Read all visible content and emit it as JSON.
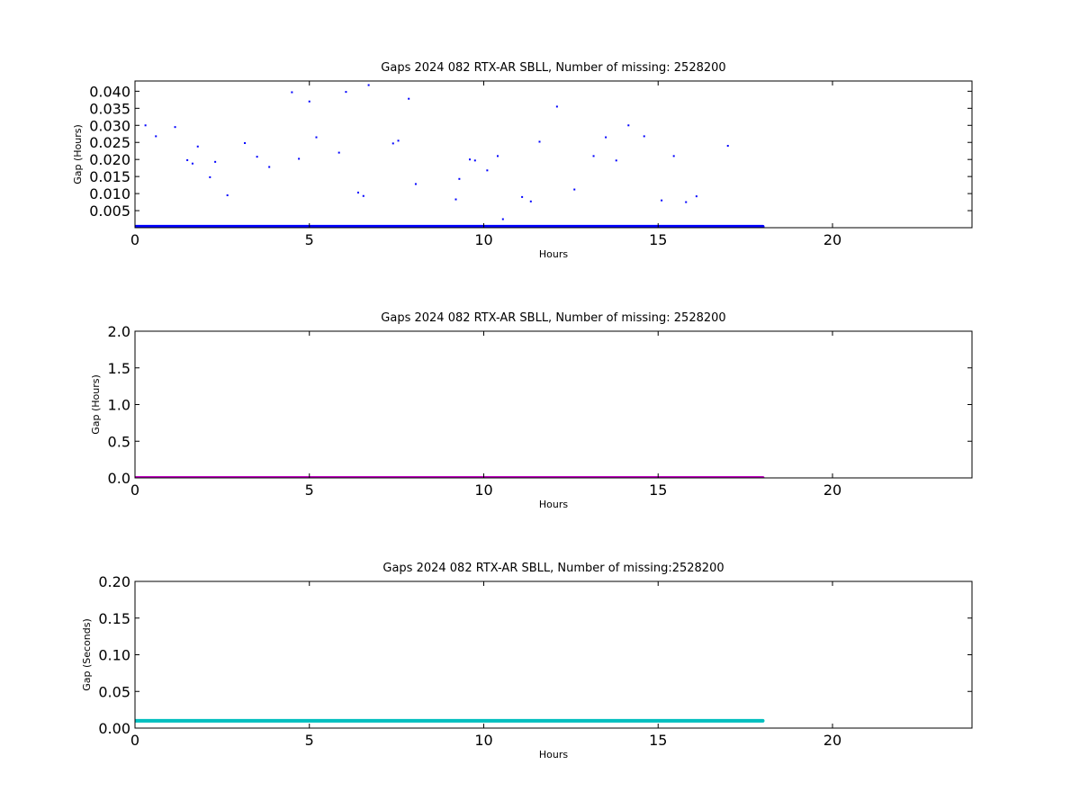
{
  "chart_data": [
    {
      "type": "scatter",
      "title": "Gaps 2024 082 RTX-AR  SBLL, Number of missing: 2528200",
      "xlabel": "Hours",
      "ylabel": "Gap (Hours)",
      "xlim": [
        0,
        24
      ],
      "ylim": [
        0,
        0.043
      ],
      "xticks": [
        0,
        5,
        10,
        15,
        20
      ],
      "yticks": [
        0.005,
        0.01,
        0.015,
        0.02,
        0.025,
        0.03,
        0.035,
        0.04
      ],
      "ytick_labels": [
        "0.005",
        "0.010",
        "0.015",
        "0.020",
        "0.025",
        "0.030",
        "0.035",
        "0.040"
      ],
      "color": "#0000ff",
      "baseline": {
        "x_start": 0,
        "x_end": 18,
        "y": 0.0003
      },
      "points": [
        {
          "x": 0.3,
          "y": 0.03
        },
        {
          "x": 0.6,
          "y": 0.0268
        },
        {
          "x": 1.15,
          "y": 0.0295
        },
        {
          "x": 1.5,
          "y": 0.0198
        },
        {
          "x": 1.65,
          "y": 0.0188
        },
        {
          "x": 1.8,
          "y": 0.0238
        },
        {
          "x": 2.15,
          "y": 0.0148
        },
        {
          "x": 2.3,
          "y": 0.0193
        },
        {
          "x": 2.65,
          "y": 0.0095
        },
        {
          "x": 3.15,
          "y": 0.0248
        },
        {
          "x": 3.5,
          "y": 0.0208
        },
        {
          "x": 3.85,
          "y": 0.0178
        },
        {
          "x": 4.5,
          "y": 0.0397
        },
        {
          "x": 4.7,
          "y": 0.0202
        },
        {
          "x": 5.0,
          "y": 0.037
        },
        {
          "x": 5.2,
          "y": 0.0265
        },
        {
          "x": 5.85,
          "y": 0.022
        },
        {
          "x": 6.05,
          "y": 0.0398
        },
        {
          "x": 6.4,
          "y": 0.0103
        },
        {
          "x": 6.55,
          "y": 0.0093
        },
        {
          "x": 6.7,
          "y": 0.0418
        },
        {
          "x": 7.4,
          "y": 0.0247
        },
        {
          "x": 7.55,
          "y": 0.0255
        },
        {
          "x": 7.85,
          "y": 0.0378
        },
        {
          "x": 8.05,
          "y": 0.0128
        },
        {
          "x": 9.2,
          "y": 0.0083
        },
        {
          "x": 9.3,
          "y": 0.0143
        },
        {
          "x": 9.6,
          "y": 0.02
        },
        {
          "x": 9.75,
          "y": 0.0197
        },
        {
          "x": 10.1,
          "y": 0.0168
        },
        {
          "x": 10.4,
          "y": 0.021
        },
        {
          "x": 10.55,
          "y": 0.0025
        },
        {
          "x": 11.1,
          "y": 0.009
        },
        {
          "x": 11.35,
          "y": 0.0077
        },
        {
          "x": 11.6,
          "y": 0.0252
        },
        {
          "x": 12.1,
          "y": 0.0355
        },
        {
          "x": 12.6,
          "y": 0.0112
        },
        {
          "x": 13.15,
          "y": 0.021
        },
        {
          "x": 13.5,
          "y": 0.0265
        },
        {
          "x": 13.8,
          "y": 0.0197
        },
        {
          "x": 14.15,
          "y": 0.03
        },
        {
          "x": 14.6,
          "y": 0.0268
        },
        {
          "x": 15.1,
          "y": 0.008
        },
        {
          "x": 15.45,
          "y": 0.021
        },
        {
          "x": 15.8,
          "y": 0.0075
        },
        {
          "x": 16.1,
          "y": 0.0092
        },
        {
          "x": 17.0,
          "y": 0.024
        }
      ]
    },
    {
      "type": "scatter",
      "title": "Gaps 2024 082 RTX-AR  SBLL, Number of missing: 2528200",
      "xlabel": "Hours",
      "ylabel": "Gap (Hours)",
      "xlim": [
        0,
        24
      ],
      "ylim": [
        0,
        2.0
      ],
      "xticks": [
        0,
        5,
        10,
        15,
        20
      ],
      "yticks": [
        0.0,
        0.5,
        1.0,
        1.5,
        2.0
      ],
      "ytick_labels": [
        "0.0",
        "0.5",
        "1.0",
        "1.5",
        "2.0"
      ],
      "color": "#bf00bf",
      "baseline": {
        "x_start": 0,
        "x_end": 18,
        "y": 0.0
      },
      "points": []
    },
    {
      "type": "line",
      "title": "Gaps 2024 082 RTX-AR  SBLL, Number of missing:2528200",
      "xlabel": "Hours",
      "ylabel": "Gap (Seconds)",
      "xlim": [
        0,
        24
      ],
      "ylim": [
        0,
        0.2
      ],
      "xticks": [
        0,
        5,
        10,
        15,
        20
      ],
      "yticks": [
        0.0,
        0.05,
        0.1,
        0.15,
        0.2
      ],
      "ytick_labels": [
        "0.00",
        "0.05",
        "0.10",
        "0.15",
        "0.20"
      ],
      "color": "#00bfbf",
      "baseline": {
        "x_start": 0,
        "x_end": 18,
        "y": 0.01
      },
      "points": []
    }
  ]
}
